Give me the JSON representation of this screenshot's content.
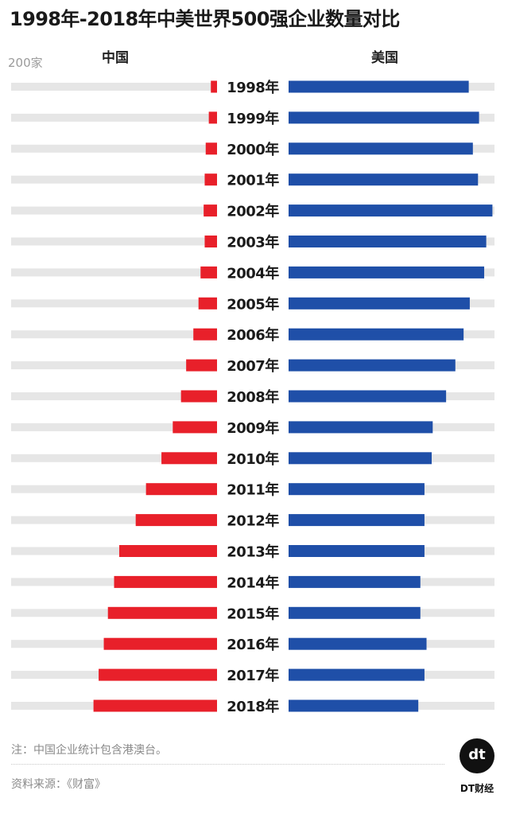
{
  "title": "1998年-2018年中美世界500强企业数量对比",
  "header": {
    "left_label": "中国",
    "right_label": "美国",
    "scale_label": "200家"
  },
  "footer": {
    "note": "注：中国企业统计包含港澳台。",
    "source": "资料来源：《财富》",
    "brand_mark": "dt",
    "brand_name": "DT财经"
  },
  "colors": {
    "china": "#e8202a",
    "usa": "#1f4fa8",
    "track": "#e6e6e6"
  },
  "chart_data": {
    "type": "bar",
    "orientation": "horizontal-diverging",
    "categories": [
      "1998年",
      "1999年",
      "2000年",
      "2001年",
      "2002年",
      "2003年",
      "2004年",
      "2005年",
      "2006年",
      "2007年",
      "2008年",
      "2009年",
      "2010年",
      "2011年",
      "2012年",
      "2013年",
      "2014年",
      "2015年",
      "2016年",
      "2017年",
      "2018年"
    ],
    "series": [
      {
        "name": "中国",
        "values": [
          6,
          8,
          11,
          12,
          13,
          12,
          16,
          18,
          23,
          30,
          35,
          43,
          54,
          69,
          79,
          95,
          100,
          106,
          110,
          115,
          120
        ]
      },
      {
        "name": "美国",
        "values": [
          175,
          185,
          179,
          184,
          198,
          192,
          190,
          176,
          170,
          162,
          153,
          140,
          139,
          132,
          132,
          132,
          128,
          128,
          134,
          132,
          126
        ]
      }
    ],
    "xlim": [
      0,
      200
    ],
    "grid": false,
    "legend": "top"
  }
}
